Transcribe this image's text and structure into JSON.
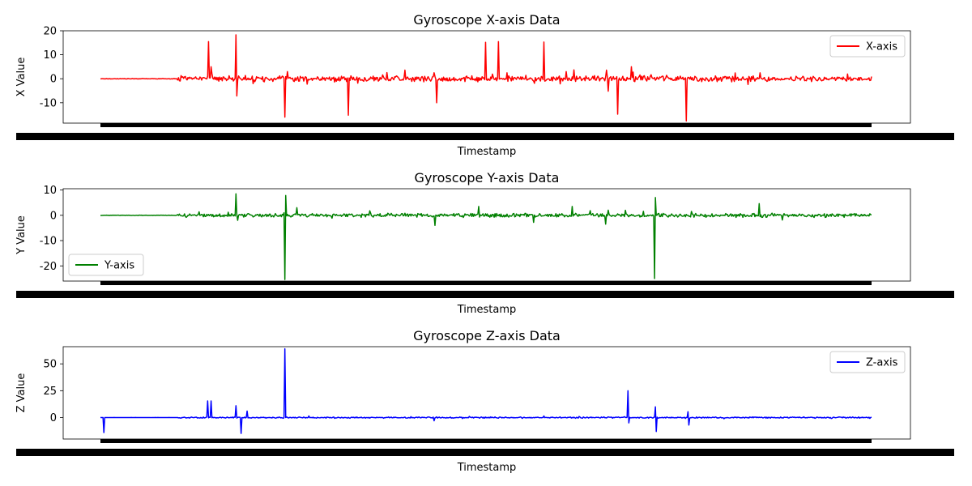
{
  "chart_data": [
    {
      "type": "line",
      "title": "Gyroscope X-axis Data",
      "xlabel": "Timestamp",
      "ylabel": "X Value",
      "ylim": [
        -18.5,
        20
      ],
      "yticks": [
        -10,
        0,
        10,
        20
      ],
      "color": "#ff0000",
      "legend_position": "upper right",
      "series": [
        {
          "name": "X-axis",
          "baseline": 0,
          "noise": 1.4,
          "quiet": [
            [
              0,
              0.1
            ]
          ],
          "spikes": [
            [
              0.14,
              15.5
            ],
            [
              0.144,
              5.0
            ],
            [
              0.176,
              18.3
            ],
            [
              0.177,
              -7.2
            ],
            [
              0.239,
              -16.0
            ],
            [
              0.242,
              3.0
            ],
            [
              0.322,
              -15.2
            ],
            [
              0.395,
              3.6
            ],
            [
              0.433,
              2.5
            ],
            [
              0.436,
              -10.0
            ],
            [
              0.499,
              15.2
            ],
            [
              0.516,
              15.5
            ],
            [
              0.527,
              2.5
            ],
            [
              0.575,
              15.3
            ],
            [
              0.614,
              3.7
            ],
            [
              0.656,
              3.6
            ],
            [
              0.658,
              -5.2
            ],
            [
              0.671,
              -14.8
            ],
            [
              0.688,
              5.0
            ],
            [
              0.691,
              2.8
            ],
            [
              0.76,
              -17.6
            ],
            [
              0.855,
              2.5
            ]
          ]
        }
      ]
    },
    {
      "type": "line",
      "title": "Gyroscope Y-axis Data",
      "xlabel": "Timestamp",
      "ylabel": "Y Value",
      "ylim": [
        -26,
        10.5
      ],
      "yticks": [
        -20,
        -10,
        0,
        10
      ],
      "color": "#008000",
      "legend_position": "lower left",
      "series": [
        {
          "name": "Y-axis",
          "baseline": 0,
          "noise": 0.9,
          "quiet": [
            [
              0,
              0.1
            ]
          ],
          "spikes": [
            [
              0.176,
              8.5
            ],
            [
              0.178,
              -2.0
            ],
            [
              0.239,
              -25.4
            ],
            [
              0.24,
              7.8
            ],
            [
              0.255,
              3.0
            ],
            [
              0.434,
              -4.0
            ],
            [
              0.49,
              3.5
            ],
            [
              0.562,
              -2.8
            ],
            [
              0.612,
              3.5
            ],
            [
              0.655,
              -3.5
            ],
            [
              0.658,
              2.0
            ],
            [
              0.719,
              -25.0
            ],
            [
              0.72,
              7.0
            ],
            [
              0.854,
              4.6
            ]
          ]
        }
      ]
    },
    {
      "type": "line",
      "title": "Gyroscope Z-axis Data",
      "xlabel": "Timestamp",
      "ylabel": "Z Value",
      "ylim": [
        -20,
        66
      ],
      "yticks": [
        0,
        25,
        50
      ],
      "color": "#0000ff",
      "legend_position": "upper right",
      "series": [
        {
          "name": "Z-axis",
          "baseline": 0,
          "noise": 0.7,
          "quiet": [
            [
              0,
              0.1
            ]
          ],
          "spikes": [
            [
              0.005,
              -14.0
            ],
            [
              0.139,
              15.5
            ],
            [
              0.144,
              15.5
            ],
            [
              0.176,
              11.0
            ],
            [
              0.182,
              -14.8
            ],
            [
              0.19,
              6.0
            ],
            [
              0.239,
              64.0
            ],
            [
              0.433,
              -3.0
            ],
            [
              0.684,
              25.0
            ],
            [
              0.685,
              -5.0
            ],
            [
              0.72,
              10.0
            ],
            [
              0.721,
              -13.0
            ],
            [
              0.762,
              5.5
            ],
            [
              0.763,
              -7.0
            ]
          ]
        }
      ]
    }
  ]
}
